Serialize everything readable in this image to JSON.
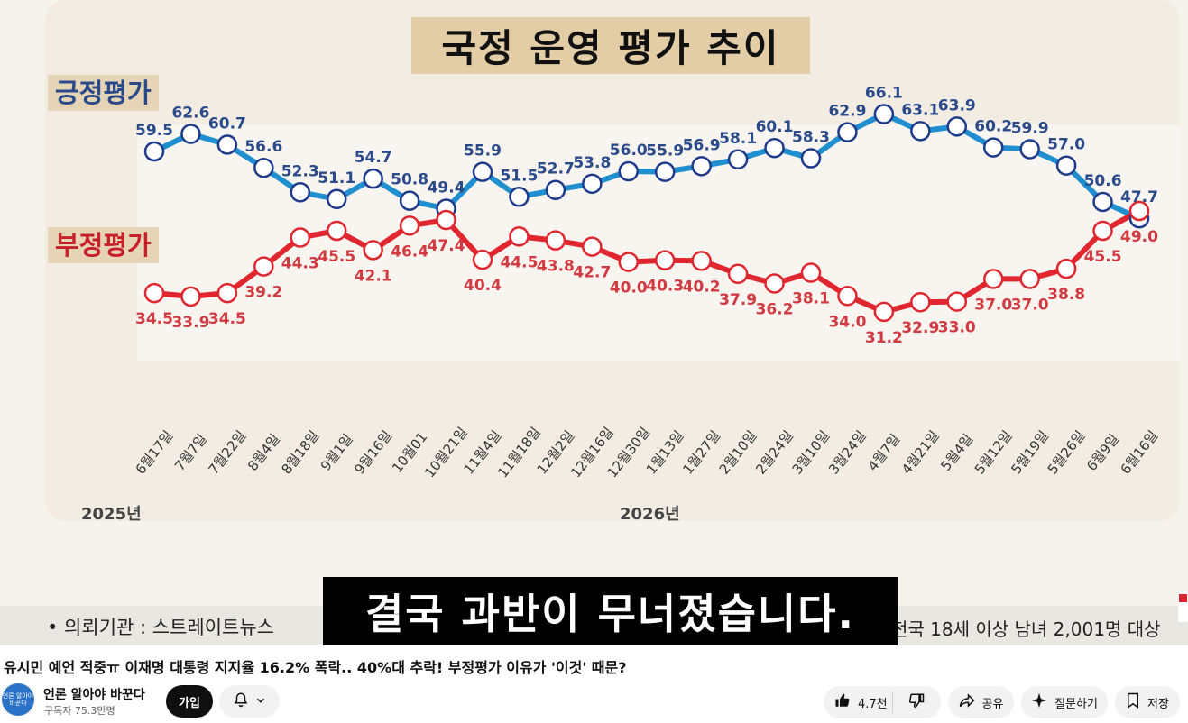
{
  "chart_title": "국정 운영 평가 추이",
  "chart_data": {
    "type": "line",
    "title": "국정 운영 평가 추이",
    "categories": [
      "6월17일",
      "7월7일",
      "7월22일",
      "8월4일",
      "8월18일",
      "9월1일",
      "9월16일",
      "10월01",
      "10월21일",
      "11월4일",
      "11월18일",
      "12월2일",
      "12월16일",
      "12월30일",
      "1월13일",
      "1월27일",
      "2월10일",
      "2월24일",
      "3월10일",
      "3월24일",
      "4월7일",
      "4월21일",
      "5월4일",
      "5월12일",
      "5월19일",
      "5월26일",
      "6월9일",
      "6월16일"
    ],
    "year_labels": [
      "2025년",
      "2026년"
    ],
    "series": [
      {
        "name": "긍정평가",
        "color": "#1f8fcf",
        "values": [
          59.5,
          62.6,
          60.7,
          56.6,
          52.3,
          51.1,
          54.7,
          50.8,
          49.4,
          55.9,
          51.5,
          52.7,
          53.8,
          56.0,
          55.9,
          56.9,
          58.1,
          60.1,
          58.3,
          62.9,
          66.1,
          63.1,
          63.9,
          60.2,
          59.9,
          57.0,
          50.6,
          47.7
        ]
      },
      {
        "name": "부정평가",
        "color": "#e0262e",
        "values": [
          34.5,
          33.9,
          34.5,
          39.2,
          44.3,
          45.5,
          42.1,
          46.4,
          47.4,
          40.4,
          44.5,
          43.8,
          42.7,
          40.0,
          40.3,
          40.2,
          37.9,
          36.2,
          38.1,
          34.0,
          31.2,
          32.9,
          33.0,
          37.0,
          37.0,
          38.8,
          45.5,
          49.0
        ]
      }
    ],
    "ylim": [
      28,
      70
    ],
    "grid": false,
    "marker_border_color": "#1e3a8a",
    "label_colors": {
      "positive": "#2a4a8a",
      "negative": "#d23a42"
    }
  },
  "caption_left": "• 의뢰기관 : 스트레이트뉴스",
  "caption_right": "전국 18세 이상 남녀 2,001명 대상",
  "subtitle": "결국 과반이 무너졌습니다.",
  "video_title": "유시민 예언 적중ㅠ 이재명 대통령 지지율 16.2% 폭락.. 40%대 추락! 부정평가 이유가 '이것' 때문?",
  "channel": {
    "name": "언론 알아야 바꾼다",
    "subscribers": "구독자 75.3만명",
    "avatar_text": "언론 알아야 바꾼다"
  },
  "buttons": {
    "join": "가입",
    "like_count": "4.7천",
    "share": "공유",
    "ask": "질문하기",
    "save": "저장"
  },
  "icons": {
    "bell": "bell-icon",
    "chevron": "chevron-down-icon",
    "like": "thumbs-up-icon",
    "dislike": "thumbs-down-icon",
    "share": "share-arrow-icon",
    "ask": "sparkle-icon",
    "save": "bookmark-icon"
  }
}
